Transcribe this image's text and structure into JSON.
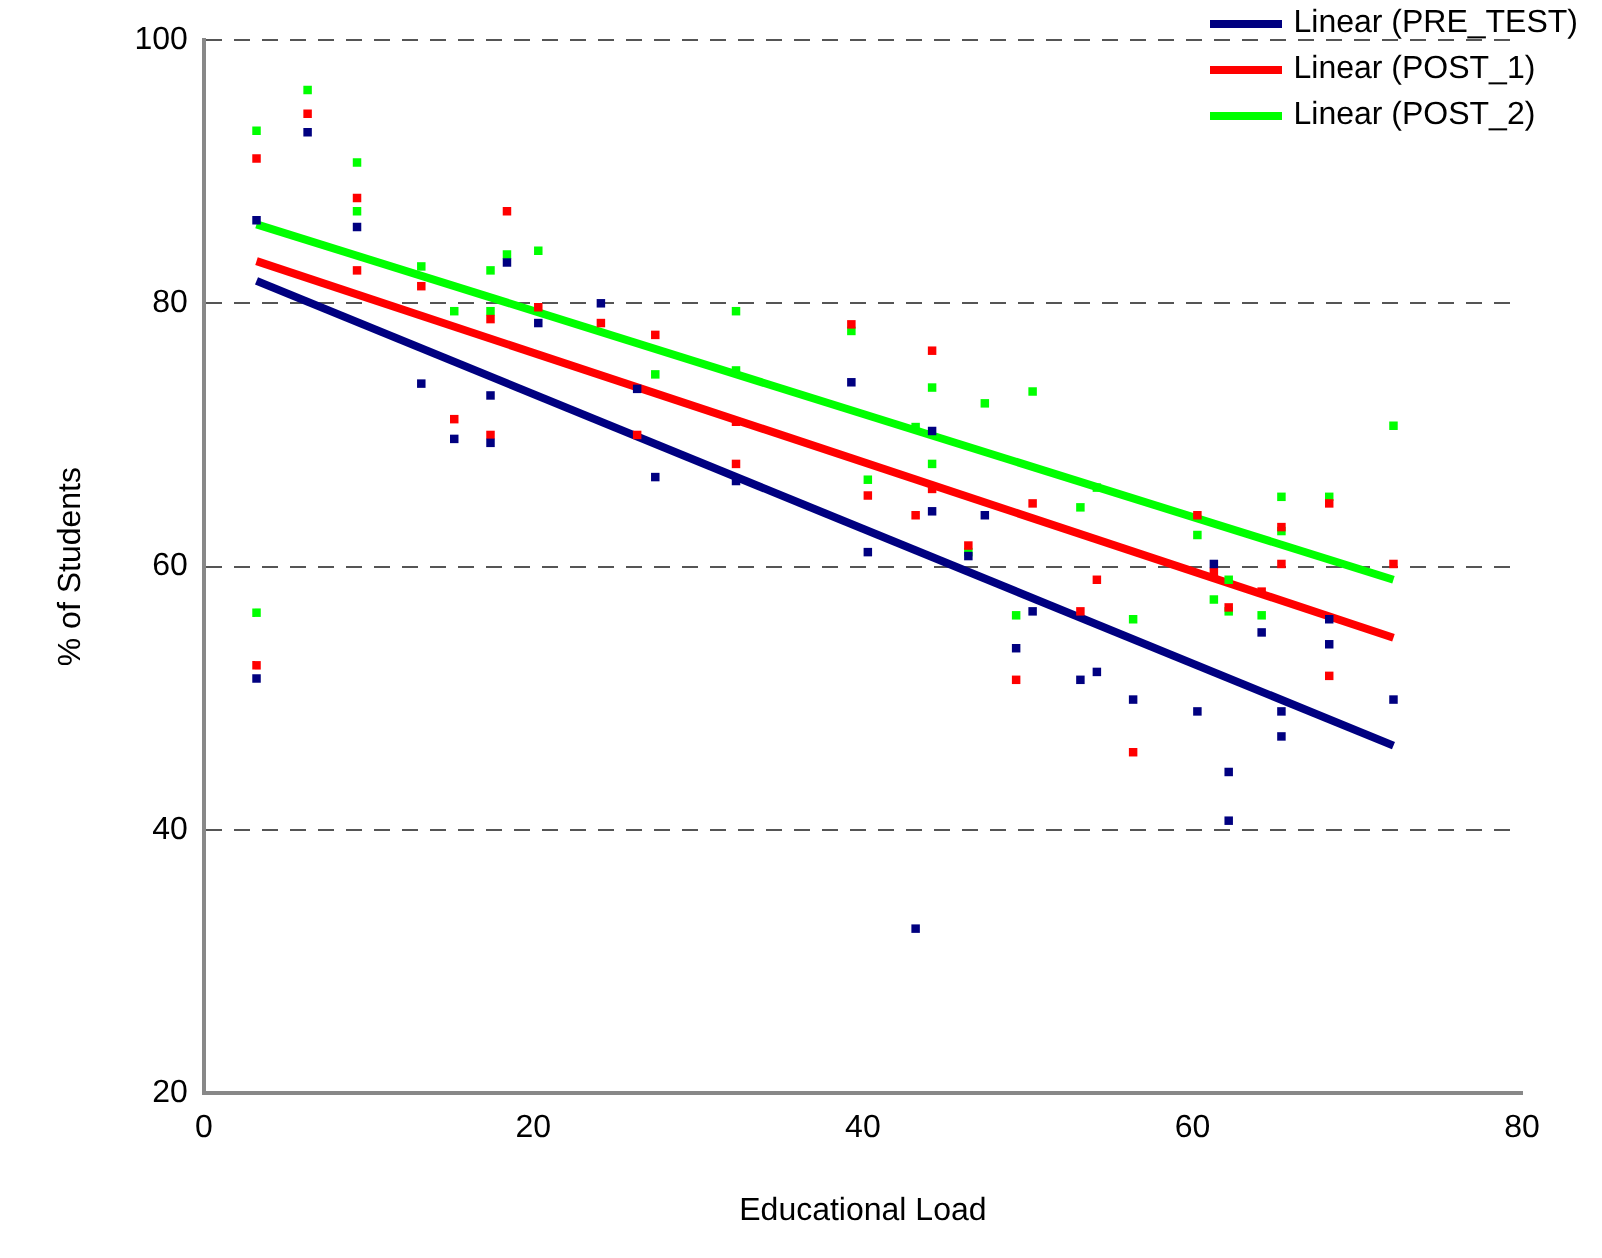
{
  "chart_data": {
    "type": "scatter",
    "xlabel": "Educational Load",
    "ylabel": "% of Students",
    "xlim": [
      0,
      80
    ],
    "xticks": [
      0,
      20,
      40,
      60,
      80
    ],
    "ylim": [
      20,
      100
    ],
    "yticks": [
      20,
      40,
      60,
      80,
      100
    ],
    "grid": "y",
    "legend": "top right",
    "marker": "square",
    "series": [
      {
        "type": "scatter",
        "color": "#000080",
        "x": [
          3.2,
          3.2,
          6.3,
          9.3,
          13.2,
          15.2,
          17.4,
          17.4,
          18.4,
          20.3,
          24.1,
          26.3,
          27.4,
          32.3,
          39.3,
          40.3,
          43.2,
          44.2,
          44.2,
          46.4,
          47.4,
          49.3,
          50.3,
          53.2,
          54.2,
          56.4,
          60.3,
          61.3,
          62.2,
          62.2,
          64.2,
          65.4,
          65.4,
          68.3,
          68.3,
          72.2
        ],
        "values": [
          86.3,
          51.5,
          93.0,
          85.8,
          73.9,
          69.7,
          73.0,
          69.4,
          83.1,
          78.5,
          80.0,
          73.5,
          66.8,
          66.5,
          74.0,
          61.1,
          32.5,
          70.3,
          64.2,
          60.8,
          63.9,
          53.8,
          56.6,
          51.4,
          52.0,
          49.9,
          49.0,
          60.2,
          44.4,
          40.7,
          55.0,
          49.0,
          47.1,
          56.0,
          54.1,
          49.9
        ]
      },
      {
        "type": "scatter",
        "color": "#ff0000",
        "x": [
          3.2,
          3.2,
          6.3,
          9.3,
          9.3,
          13.2,
          15.2,
          17.4,
          17.4,
          18.4,
          20.3,
          24.1,
          26.3,
          27.4,
          32.3,
          32.3,
          39.3,
          40.3,
          43.2,
          44.2,
          44.2,
          46.4,
          49.3,
          50.3,
          53.2,
          54.2,
          56.4,
          60.3,
          61.3,
          62.2,
          64.2,
          65.4,
          65.4,
          68.3,
          68.3,
          72.2
        ],
        "values": [
          91.0,
          52.5,
          94.4,
          88.0,
          82.5,
          81.3,
          71.2,
          78.8,
          70.0,
          87.0,
          79.7,
          78.5,
          70.0,
          77.6,
          71.0,
          67.8,
          78.4,
          65.4,
          63.9,
          76.4,
          65.9,
          61.6,
          51.4,
          64.8,
          56.6,
          59.0,
          45.9,
          63.9,
          59.6,
          56.9,
          58.1,
          63.0,
          60.2,
          64.8,
          51.7,
          60.2
        ]
      },
      {
        "type": "scatter",
        "color": "#00ff00",
        "x": [
          3.2,
          3.2,
          6.3,
          9.3,
          9.3,
          13.2,
          15.2,
          17.4,
          17.4,
          18.4,
          20.3,
          27.4,
          32.3,
          32.3,
          39.3,
          40.3,
          43.2,
          44.2,
          44.2,
          46.4,
          47.4,
          49.3,
          50.3,
          53.2,
          54.2,
          56.4,
          60.3,
          61.3,
          62.2,
          62.2,
          64.2,
          65.4,
          65.4,
          68.3,
          72.2
        ],
        "values": [
          93.1,
          56.5,
          96.2,
          90.7,
          87.0,
          82.8,
          79.4,
          82.5,
          79.4,
          83.7,
          84.0,
          74.6,
          79.4,
          74.9,
          77.9,
          66.6,
          70.6,
          73.6,
          67.8,
          61.1,
          72.4,
          56.3,
          73.3,
          64.5,
          66.0,
          56.0,
          62.4,
          57.5,
          59.0,
          56.6,
          56.3,
          65.3,
          62.7,
          65.3,
          70.7
        ]
      },
      {
        "type": "line",
        "name": "Linear (PRE_TEST)",
        "color": "#000080",
        "marker": "none",
        "x": [
          3.2,
          72.2
        ],
        "values": [
          81.7,
          46.4
        ]
      },
      {
        "type": "line",
        "name": "Linear (POST_1)",
        "color": "#ff0000",
        "marker": "none",
        "x": [
          3.2,
          72.2
        ],
        "values": [
          83.2,
          54.6
        ]
      },
      {
        "type": "line",
        "name": "Linear (POST_2)",
        "color": "#00ff00",
        "marker": "none",
        "x": [
          3.2,
          72.2
        ],
        "values": [
          86.0,
          59.0
        ]
      }
    ]
  }
}
